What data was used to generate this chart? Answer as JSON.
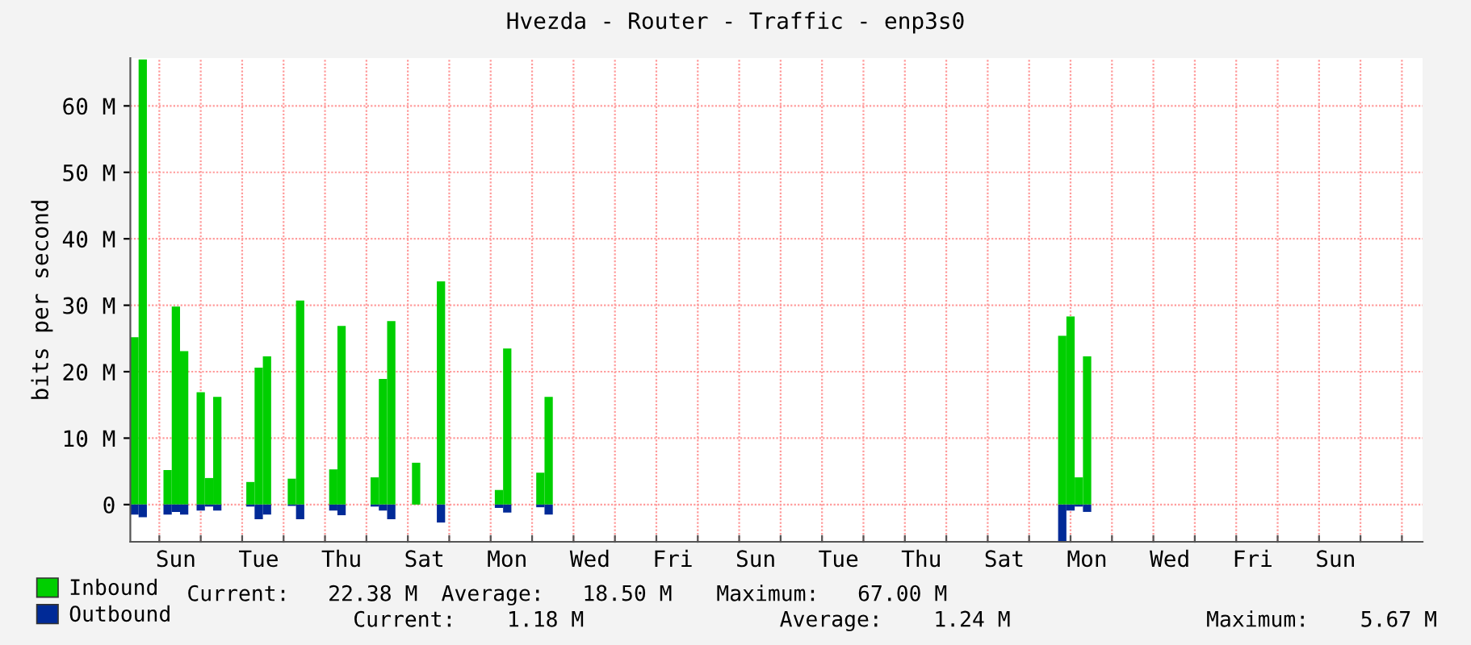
{
  "chart_data": {
    "type": "bar",
    "title": "Hvezda - Router - Traffic - enp3s0",
    "ylabel": "bits per second",
    "stacked": true,
    "categories": [
      null,
      null,
      null,
      null,
      null,
      "Sun",
      null,
      null,
      null,
      null,
      null,
      null,
      null,
      null,
      null,
      "Tue",
      null,
      null,
      null,
      null,
      null,
      null,
      null,
      null,
      null,
      "Thu",
      null,
      null,
      null,
      null,
      null,
      null,
      null,
      null,
      null,
      "Sat",
      null,
      null,
      null,
      null,
      null,
      null,
      null,
      null,
      null,
      "Mon",
      null,
      null,
      null,
      null,
      null,
      null,
      null,
      null,
      null,
      "Wed",
      null,
      null,
      null,
      null,
      null,
      null,
      null,
      null,
      null,
      "Fri",
      null,
      null,
      null,
      null,
      null,
      null,
      null,
      null,
      null,
      "Sun",
      null,
      null,
      null,
      null,
      null,
      null,
      null,
      null,
      null,
      "Tue",
      null,
      null,
      null,
      null,
      null,
      null,
      null,
      null,
      null,
      "Thu",
      null,
      null,
      null,
      null,
      null,
      null,
      null,
      null,
      null,
      "Sat",
      null,
      null,
      null,
      null,
      null,
      null,
      null,
      null,
      null,
      "Mon",
      null,
      null,
      null,
      null,
      null,
      null,
      null,
      null,
      null,
      "Wed",
      null,
      null,
      null,
      null,
      null,
      null,
      null,
      null,
      null,
      "Fri",
      null,
      null,
      null,
      null,
      null,
      null,
      null,
      null,
      null,
      "Sun",
      null,
      null,
      null,
      null,
      null,
      null,
      null,
      null,
      null,
      null
    ],
    "series": [
      {
        "name": "Inbound",
        "color": "#00cf00",
        "values": [
          25.2,
          67.0,
          null,
          null,
          5.2,
          29.8,
          23.1,
          null,
          16.9,
          4.0,
          16.2,
          null,
          null,
          null,
          3.4,
          20.6,
          22.3,
          null,
          null,
          3.9,
          30.7,
          null,
          null,
          null,
          5.3,
          26.9,
          null,
          null,
          null,
          4.1,
          18.9,
          27.6,
          null,
          null,
          6.3,
          null,
          null,
          33.6,
          null,
          null,
          null,
          null,
          null,
          null,
          2.2,
          23.5,
          null,
          null,
          null,
          4.8,
          16.2,
          null,
          null,
          null,
          null,
          null,
          null,
          null,
          null,
          null,
          null,
          null,
          null,
          null,
          null,
          null,
          null,
          null,
          null,
          null,
          null,
          null,
          null,
          null,
          null,
          null,
          null,
          null,
          null,
          null,
          null,
          null,
          null,
          null,
          null,
          null,
          null,
          null,
          null,
          null,
          null,
          null,
          null,
          null,
          null,
          null,
          null,
          null,
          null,
          null,
          null,
          null,
          null,
          null,
          null,
          null,
          null,
          null,
          null,
          null,
          null,
          null,
          25.4,
          28.3,
          4.1,
          22.3,
          null,
          null,
          null,
          null,
          null,
          null,
          null,
          null,
          null,
          null,
          null,
          null,
          null,
          null,
          null,
          null,
          null,
          null,
          null,
          null,
          null,
          null,
          null,
          null,
          null,
          null,
          null,
          null,
          null,
          null,
          null,
          null,
          null,
          null,
          null,
          null,
          null,
          null,
          null,
          null
        ]
      },
      {
        "name": "Outbound",
        "color": "#002a97",
        "values": [
          -1.5,
          -1.9,
          null,
          null,
          -1.5,
          -1.1,
          -1.5,
          null,
          -0.9,
          -0.3,
          -0.9,
          null,
          null,
          null,
          -0.3,
          -2.2,
          -1.5,
          null,
          null,
          -0.2,
          -2.2,
          null,
          null,
          null,
          -0.9,
          -1.6,
          null,
          null,
          null,
          -0.3,
          -0.9,
          -2.2,
          null,
          null,
          null,
          null,
          null,
          -2.7,
          null,
          null,
          null,
          null,
          null,
          null,
          -0.5,
          -1.2,
          null,
          null,
          null,
          -0.4,
          -1.5,
          null,
          null,
          null,
          null,
          null,
          null,
          null,
          null,
          null,
          null,
          null,
          null,
          null,
          null,
          null,
          null,
          null,
          null,
          null,
          null,
          null,
          null,
          null,
          null,
          null,
          null,
          null,
          null,
          null,
          null,
          null,
          null,
          null,
          null,
          null,
          null,
          null,
          null,
          null,
          null,
          null,
          null,
          null,
          null,
          null,
          null,
          null,
          null,
          null,
          null,
          null,
          null,
          null,
          null,
          null,
          null,
          null,
          null,
          null,
          null,
          null,
          -5.6,
          -0.9,
          -0.3,
          -1.1,
          null,
          null,
          null,
          null,
          null,
          null,
          null,
          null,
          null,
          null,
          null,
          null,
          null,
          null,
          null,
          null,
          null,
          null,
          null,
          null,
          null,
          null,
          null,
          null,
          null,
          null,
          null,
          null,
          null,
          null,
          null,
          null,
          null,
          null,
          null,
          null,
          null,
          null,
          null,
          null
        ]
      }
    ],
    "ylim": [
      -5.6,
      67.2
    ],
    "yticks": [
      0,
      {
        "value": 10,
        "label": "10 M"
      },
      {
        "value": 20,
        "label": "20 M"
      },
      {
        "value": 30,
        "label": "30 M"
      },
      {
        "value": 40,
        "label": "40 M"
      },
      {
        "value": 50,
        "label": "50 M"
      },
      {
        "value": 60,
        "label": "60 M"
      }
    ],
    "grid": true,
    "legend": "bottom",
    "annotations": [
      "Current:   22.38 M",
      "Average:   18.50 M",
      "Maximum:   67.00 M",
      "Current:    1.18 M",
      "Average:    1.24 M",
      "Maximum:    5.67 M"
    ]
  }
}
